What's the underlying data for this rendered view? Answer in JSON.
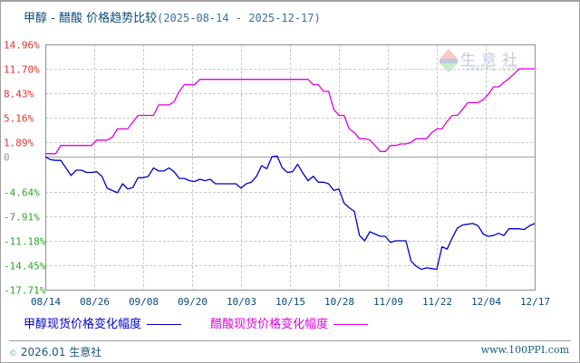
{
  "header": {
    "title": "甲醇 - 醋酸 价格趋势比较",
    "date_range": "(2025-08-14 - 2025-12-17)"
  },
  "legend": {
    "series1_label": "甲醇现货价格变化幅度",
    "series2_label": "醋酸现货价格变化幅度"
  },
  "footer": {
    "copyright_icon": "©",
    "left_text": "2026.01 生意社",
    "right_text": "www.100PPI.com"
  },
  "watermark": {
    "logo_icon": "ppi-logo-icon",
    "text": "生意社",
    "subtext": "100PPI.COM"
  },
  "colors": {
    "series1": "#0000cc",
    "series2": "#e000e0",
    "positive_axis": "#e03030",
    "negative_axis": "#2aa52a",
    "zero_label": "#999999",
    "grid": "#c8c8c8",
    "axis": "#999999"
  },
  "chart_data": {
    "type": "line",
    "title": "甲醇 - 醋酸 价格趋势比较 (2025-08-14 - 2025-12-17)",
    "xlabel": "",
    "ylabel": "",
    "ylim": [
      -17.71,
      14.96
    ],
    "y_ticks": [
      "14.96%",
      "11.70%",
      "8.43%",
      "5.16%",
      "1.89%",
      "0",
      "-4.64%",
      "-7.91%",
      "-11.18%",
      "-14.45%",
      "-17.71%"
    ],
    "x_ticks": [
      "08/14",
      "08/26",
      "09/08",
      "09/20",
      "10/03",
      "10/15",
      "10/28",
      "11/09",
      "11/22",
      "12/04",
      "12/17"
    ],
    "grid": true,
    "legend_position": "bottom",
    "series": [
      {
        "name": "甲醇现货价格变化幅度",
        "color": "#0000cc",
        "points": [
          [
            0,
            0
          ],
          [
            1,
            -0.4
          ],
          [
            2,
            -0.5
          ],
          [
            3,
            -0.5
          ],
          [
            4,
            -1.5
          ],
          [
            5,
            -2.5
          ],
          [
            6,
            -1.8
          ],
          [
            7,
            -1.8
          ],
          [
            8,
            -2.1
          ],
          [
            9,
            -2.1
          ],
          [
            10,
            -2.0
          ],
          [
            11,
            -2.6
          ],
          [
            12,
            -4.2
          ],
          [
            13,
            -4.5
          ],
          [
            14,
            -4.8
          ],
          [
            15,
            -3.6
          ],
          [
            16,
            -4.3
          ],
          [
            17,
            -4.1
          ],
          [
            18,
            -2.8
          ],
          [
            19,
            -2.8
          ],
          [
            20,
            -2.6
          ],
          [
            21,
            -1.5
          ],
          [
            22,
            -1.9
          ],
          [
            23,
            -1.9
          ],
          [
            24,
            -1.5
          ],
          [
            25,
            -2.0
          ],
          [
            26,
            -2.9
          ],
          [
            27,
            -2.9
          ],
          [
            28,
            -3.2
          ],
          [
            29,
            -3.3
          ],
          [
            30,
            -3.0
          ],
          [
            31,
            -3.2
          ],
          [
            32,
            -3.0
          ],
          [
            33,
            -3.6
          ],
          [
            34,
            -3.6
          ],
          [
            35,
            -3.6
          ],
          [
            36,
            -3.6
          ],
          [
            37,
            -3.6
          ],
          [
            38,
            -4.2
          ],
          [
            39,
            -3.6
          ],
          [
            40,
            -3.4
          ],
          [
            41,
            -2.6
          ],
          [
            42,
            -1.2
          ],
          [
            43,
            -1.6
          ],
          [
            44,
            0.0
          ],
          [
            45,
            0.1
          ],
          [
            46,
            -1.5
          ],
          [
            47,
            -2.1
          ],
          [
            48,
            -2.0
          ],
          [
            49,
            -1.0
          ],
          [
            50,
            -2.2
          ],
          [
            51,
            -3.2
          ],
          [
            52,
            -2.6
          ],
          [
            53,
            -3.4
          ],
          [
            54,
            -3.4
          ],
          [
            55,
            -3.6
          ],
          [
            56,
            -4.5
          ],
          [
            57,
            -4.3
          ],
          [
            58,
            -6.2
          ],
          [
            59,
            -6.8
          ],
          [
            60,
            -7.3
          ],
          [
            61,
            -10.5
          ],
          [
            62,
            -11.2
          ],
          [
            63,
            -10.0
          ],
          [
            64,
            -10.3
          ],
          [
            65,
            -10.6
          ],
          [
            66,
            -10.6
          ],
          [
            67,
            -11.4
          ],
          [
            68,
            -11.2
          ],
          [
            69,
            -11.2
          ],
          [
            70,
            -11.2
          ],
          [
            71,
            -13.9
          ],
          [
            72,
            -14.6
          ],
          [
            73,
            -15.0
          ],
          [
            74,
            -14.8
          ],
          [
            75,
            -14.9
          ],
          [
            76,
            -15.0
          ],
          [
            77,
            -12.0
          ],
          [
            78,
            -12.3
          ],
          [
            79,
            -10.8
          ],
          [
            80,
            -9.5
          ],
          [
            81,
            -9.1
          ],
          [
            82,
            -9.0
          ],
          [
            83,
            -8.9
          ],
          [
            84,
            -9.2
          ],
          [
            85,
            -10.3
          ],
          [
            86,
            -10.6
          ],
          [
            87,
            -10.5
          ],
          [
            88,
            -10.2
          ],
          [
            89,
            -10.5
          ],
          [
            90,
            -9.6
          ],
          [
            91,
            -9.6
          ],
          [
            92,
            -9.6
          ],
          [
            93,
            -9.7
          ],
          [
            94,
            -9.2
          ],
          [
            95,
            -8.9
          ]
        ]
      },
      {
        "name": "醋酸现货价格变化幅度",
        "color": "#e000e0",
        "points": [
          [
            0,
            0.4
          ],
          [
            1,
            0.4
          ],
          [
            2,
            0.4
          ],
          [
            3,
            1.5
          ],
          [
            4,
            1.5
          ],
          [
            5,
            1.5
          ],
          [
            6,
            1.5
          ],
          [
            7,
            1.5
          ],
          [
            8,
            1.5
          ],
          [
            9,
            1.5
          ],
          [
            10,
            2.2
          ],
          [
            11,
            2.2
          ],
          [
            12,
            2.2
          ],
          [
            13,
            2.6
          ],
          [
            14,
            3.7
          ],
          [
            15,
            3.7
          ],
          [
            16,
            3.7
          ],
          [
            17,
            4.6
          ],
          [
            18,
            5.5
          ],
          [
            19,
            5.5
          ],
          [
            20,
            5.5
          ],
          [
            21,
            5.5
          ],
          [
            22,
            6.9
          ],
          [
            23,
            6.9
          ],
          [
            24,
            6.9
          ],
          [
            25,
            7.3
          ],
          [
            26,
            8.7
          ],
          [
            27,
            9.6
          ],
          [
            28,
            9.6
          ],
          [
            29,
            9.6
          ],
          [
            30,
            10.3
          ],
          [
            31,
            10.3
          ],
          [
            32,
            10.3
          ],
          [
            33,
            10.3
          ],
          [
            34,
            10.3
          ],
          [
            35,
            10.3
          ],
          [
            36,
            10.3
          ],
          [
            37,
            10.3
          ],
          [
            38,
            10.3
          ],
          [
            39,
            10.3
          ],
          [
            40,
            10.3
          ],
          [
            41,
            10.3
          ],
          [
            42,
            10.3
          ],
          [
            43,
            10.3
          ],
          [
            44,
            10.3
          ],
          [
            45,
            10.3
          ],
          [
            46,
            10.3
          ],
          [
            47,
            10.3
          ],
          [
            48,
            10.3
          ],
          [
            49,
            10.3
          ],
          [
            50,
            10.3
          ],
          [
            51,
            10.3
          ],
          [
            52,
            9.6
          ],
          [
            53,
            9.6
          ],
          [
            54,
            8.7
          ],
          [
            55,
            8.7
          ],
          [
            56,
            6.3
          ],
          [
            57,
            5.5
          ],
          [
            58,
            5.5
          ],
          [
            59,
            3.7
          ],
          [
            60,
            3.2
          ],
          [
            61,
            2.4
          ],
          [
            62,
            2.4
          ],
          [
            63,
            2.2
          ],
          [
            64,
            1.5
          ],
          [
            65,
            0.7
          ],
          [
            66,
            0.7
          ],
          [
            67,
            1.5
          ],
          [
            68,
            1.5
          ],
          [
            69,
            1.7
          ],
          [
            70,
            1.7
          ],
          [
            71,
            1.9
          ],
          [
            72,
            2.4
          ],
          [
            73,
            2.4
          ],
          [
            74,
            2.4
          ],
          [
            75,
            3.2
          ],
          [
            76,
            3.7
          ],
          [
            77,
            3.7
          ],
          [
            78,
            4.7
          ],
          [
            79,
            5.5
          ],
          [
            80,
            5.5
          ],
          [
            81,
            6.3
          ],
          [
            82,
            7.2
          ],
          [
            83,
            7.2
          ],
          [
            84,
            7.2
          ],
          [
            85,
            7.6
          ],
          [
            86,
            8.3
          ],
          [
            87,
            9.3
          ],
          [
            88,
            9.3
          ],
          [
            89,
            9.9
          ],
          [
            90,
            10.4
          ],
          [
            91,
            11.0
          ],
          [
            92,
            11.7
          ],
          [
            93,
            11.7
          ],
          [
            94,
            11.7
          ],
          [
            95,
            11.7
          ]
        ]
      }
    ]
  }
}
